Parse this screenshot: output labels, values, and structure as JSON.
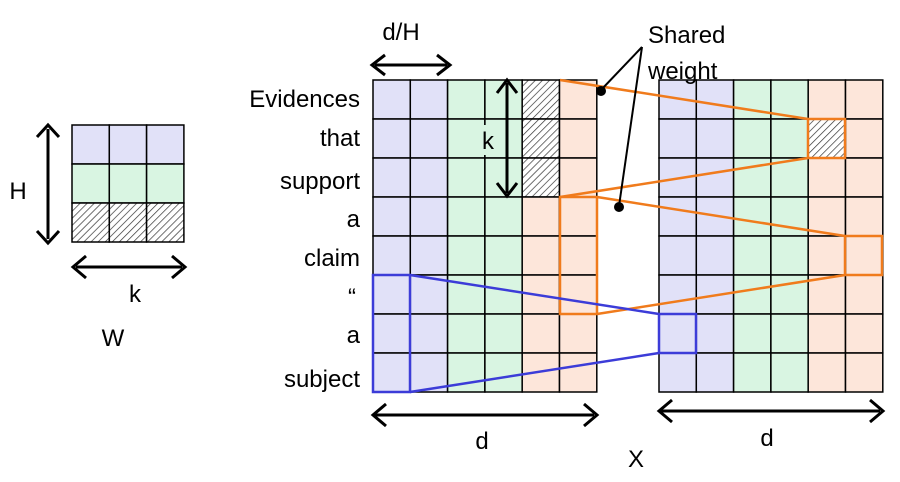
{
  "colors": {
    "purple": "#e1e1f8",
    "green": "#d9f5e2",
    "peach": "#fde6da",
    "orange": "#f07b1c",
    "blue": "#3c3cd8",
    "grid": "#000000"
  },
  "kernel": {
    "height_label": "H",
    "width_label": "k",
    "caption": "W",
    "rows": [
      [
        "purple",
        "purple",
        "purple"
      ],
      [
        "green",
        "green",
        "green"
      ],
      [
        "hatch",
        "hatch",
        "hatch"
      ]
    ]
  },
  "input_matrix": {
    "column_colors": [
      "purple",
      "purple",
      "green",
      "green",
      "peach",
      "peach"
    ],
    "hatched_cells": [
      [
        0,
        4
      ],
      [
        1,
        4
      ],
      [
        2,
        4
      ]
    ],
    "head_width_label": "d/H",
    "kernel_size_label": "k",
    "width_label": "d",
    "tokens": [
      "Evidences",
      "that",
      "support",
      "a",
      "claim",
      "“",
      "a",
      "subject"
    ]
  },
  "output_matrix": {
    "column_colors": [
      "purple",
      "purple",
      "green",
      "green",
      "peach",
      "peach"
    ],
    "hatched_cells": [
      [
        1,
        4
      ]
    ],
    "width_label": "d"
  },
  "annotations": {
    "shared_weight": [
      "Shared",
      "weight"
    ],
    "x_label": "X"
  },
  "icons": [
    "double-arrow-icon",
    "hatch-pattern"
  ]
}
